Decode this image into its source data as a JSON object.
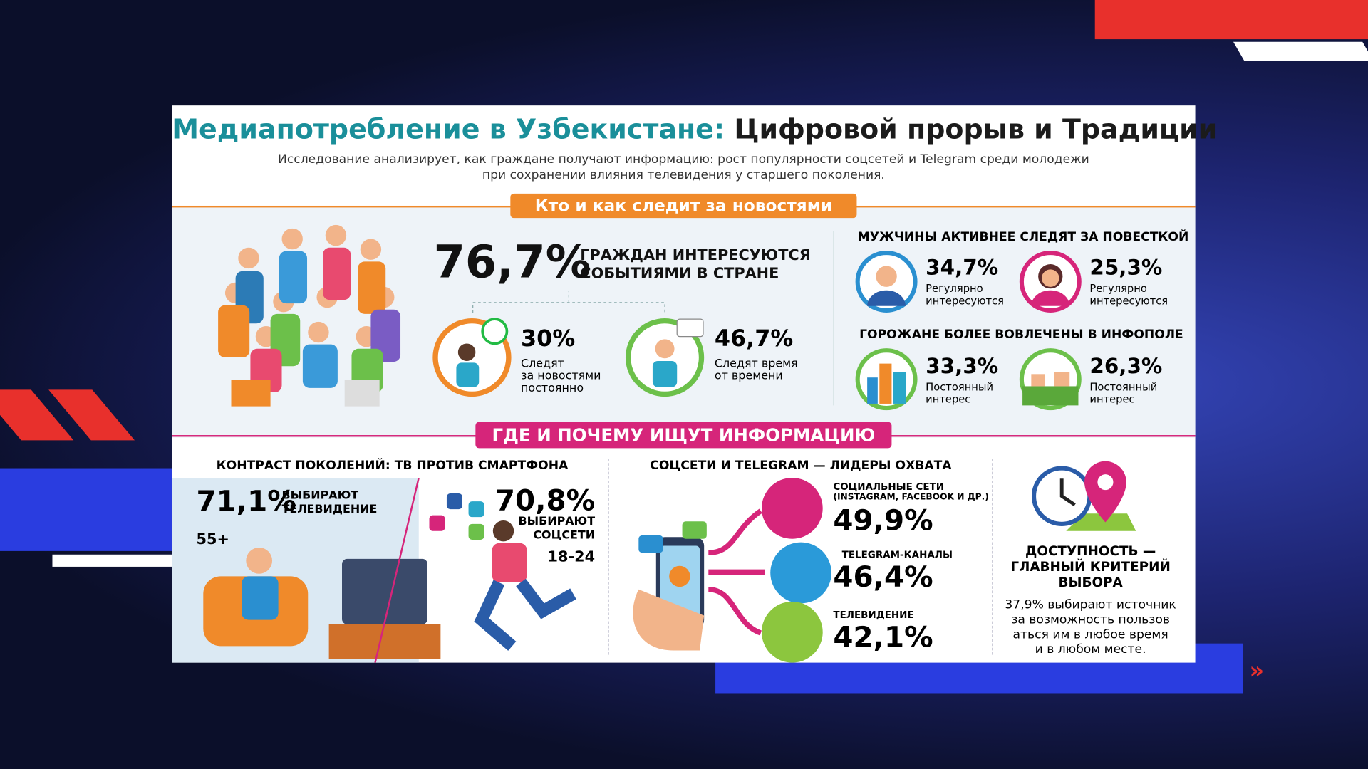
{
  "header": {
    "title_accent": "Медиапотребление в Узбекистане:",
    "title_main": "Цифровой прорыв и Традиции",
    "subtitle": [
      "Исследование анализирует, как граждане получают информацию: рост популярности соцсетей и Telegram среди молодежи",
      "при сохранении влияния телевидения у старшего поколения."
    ]
  },
  "section1": {
    "banner": "Кто и как следит за новостями",
    "headline": {
      "value": "76,7%",
      "label": [
        "ГРАЖДАН ИНТЕРЕСУЮТСЯ",
        "СОБЫТИЯМИ В СТРАНЕ"
      ]
    },
    "stats": [
      {
        "value": "30%",
        "label": [
          "Следят",
          "за новостями",
          "постоянно"
        ]
      },
      {
        "value": "46,7%",
        "label": [
          "Следят время",
          "от времени"
        ]
      }
    ],
    "gender": {
      "title": "МУЖЧИНЫ АКТИВНЕЕ СЛЕДЯТ ЗА ПОВЕСТКОЙ",
      "items": [
        {
          "value": "34,7%",
          "label": [
            "Регулярно",
            "интересуются"
          ]
        },
        {
          "value": "25,3%",
          "label": [
            "Регулярно",
            "интересуются"
          ]
        }
      ]
    },
    "urban": {
      "title": "ГОРОЖАНЕ БОЛЕЕ ВОВЛЕЧЕНЫ В ИНФОПОЛЕ",
      "items": [
        {
          "value": "33,3%",
          "label": [
            "Постоянный",
            "интерес"
          ]
        },
        {
          "value": "26,3%",
          "label": [
            "Постоянный",
            "интерес"
          ]
        }
      ]
    }
  },
  "section2": {
    "banner": "ГДЕ И ПОЧЕМУ ИЩУТ ИНФОРМАЦИЮ",
    "generations": {
      "title": "КОНТРАСТ ПОКОЛЕНИЙ: ТВ ПРОТИВ СМАРТФОНА",
      "tv": {
        "value": "71,1%",
        "label": [
          "ВЫБИРАЮТ",
          "ТЕЛЕВИДЕНИЕ"
        ],
        "age": "55+"
      },
      "social": {
        "value": "70,8%",
        "label": [
          "ВЫБИРАЮТ",
          "СОЦСЕТИ"
        ],
        "age": "18-24"
      }
    },
    "reach": {
      "title": "СОЦСЕТИ И TELEGRAM — ЛИДЕРЫ ОХВАТА",
      "items": [
        {
          "label": [
            "СОЦИАЛЬНЫЕ СЕТИ",
            "(INSTAGRAM, FACEBOOK И ДР.)"
          ],
          "value": "49,9%"
        },
        {
          "label": [
            "TELEGRAM-КАНАЛЫ"
          ],
          "value": "46,4%"
        },
        {
          "label": [
            "ТЕЛЕВИДЕНИЕ"
          ],
          "value": "42,1%"
        }
      ]
    },
    "access": {
      "title": [
        "ДОСТУПНОСТЬ —",
        "ГЛАВНЫЙ КРИТЕРИЙ",
        "ВЫБОРА"
      ],
      "text": [
        "37,9% выбирают источник",
        "за возможность пользов",
        "аться им в любое время",
        "и в любом месте."
      ]
    }
  }
}
